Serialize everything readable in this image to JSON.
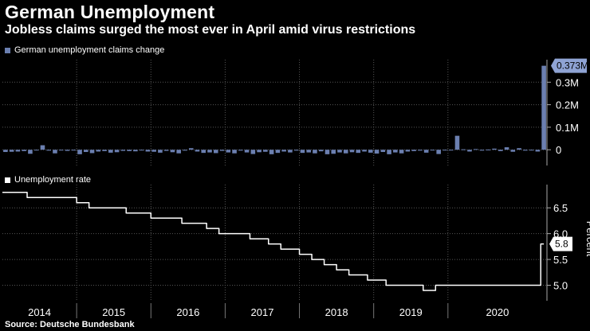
{
  "title": "German Unemployment",
  "subtitle": "Jobless claims surged the most ever in April amid virus restrictions",
  "source": "Source: Deutsche Bundesbank",
  "colors": {
    "bars": "#6b7fb0",
    "line": "#ffffff",
    "badge_claims": "#8fa3d4",
    "badge_rate": "#ffffff"
  },
  "chart_data": [
    {
      "type": "bar",
      "legend": "German unemployment claims change",
      "unit": "M",
      "ylim": [
        -0.07,
        0.4
      ],
      "yticks": [
        0,
        0.1,
        0.2,
        0.3
      ],
      "ytick_labels": [
        "0",
        "0.1M",
        "0.2M",
        "0.3M"
      ],
      "last_value_label": "0.373M",
      "start": "2014-01",
      "values": [
        -0.01,
        -0.009,
        -0.008,
        -0.006,
        -0.018,
        -0.002,
        0.02,
        -0.004,
        -0.016,
        -0.002,
        -0.005,
        -0.003,
        -0.02,
        -0.01,
        -0.015,
        -0.008,
        -0.006,
        -0.013,
        -0.011,
        -0.005,
        -0.006,
        -0.007,
        -0.002,
        -0.008,
        -0.009,
        -0.013,
        -0.005,
        -0.011,
        -0.016,
        -0.004,
        0.007,
        -0.008,
        -0.014,
        -0.012,
        -0.015,
        -0.005,
        -0.012,
        -0.016,
        -0.004,
        -0.012,
        -0.019,
        -0.011,
        -0.009,
        -0.02,
        -0.014,
        -0.008,
        -0.012,
        -0.004,
        -0.014,
        -0.012,
        -0.016,
        -0.007,
        -0.02,
        -0.018,
        -0.012,
        -0.016,
        -0.011,
        -0.014,
        -0.008,
        -0.013,
        -0.017,
        -0.01,
        -0.02,
        -0.012,
        -0.016,
        -0.008,
        -0.006,
        -0.004,
        -0.013,
        -0.001,
        -0.019,
        -0.003,
        -0.001,
        0.062,
        0.002,
        -0.008,
        0.003,
        -0.004,
        0.001,
        0.005,
        -0.006,
        0.011,
        -0.009,
        0.007,
        -0.004,
        -0.002,
        -0.008,
        0.373
      ]
    },
    {
      "type": "line",
      "legend": "Unemployment rate",
      "ylabel": "Percent",
      "ylim": [
        4.7,
        6.95
      ],
      "yticks": [
        5.0,
        5.5,
        6.0,
        6.5
      ],
      "ytick_labels": [
        "5.0",
        "5.5",
        "6.0",
        "6.5"
      ],
      "last_value_label": "5.8",
      "start": "2014-01",
      "values": [
        6.8,
        6.8,
        6.8,
        6.8,
        6.7,
        6.7,
        6.7,
        6.7,
        6.7,
        6.7,
        6.7,
        6.7,
        6.6,
        6.6,
        6.5,
        6.5,
        6.5,
        6.5,
        6.5,
        6.5,
        6.4,
        6.4,
        6.4,
        6.4,
        6.3,
        6.3,
        6.3,
        6.3,
        6.3,
        6.2,
        6.2,
        6.2,
        6.2,
        6.1,
        6.1,
        6.0,
        6.0,
        6.0,
        6.0,
        6.0,
        5.9,
        5.9,
        5.9,
        5.8,
        5.8,
        5.7,
        5.7,
        5.7,
        5.6,
        5.6,
        5.5,
        5.5,
        5.4,
        5.4,
        5.3,
        5.3,
        5.2,
        5.2,
        5.2,
        5.1,
        5.1,
        5.1,
        5.0,
        5.0,
        5.0,
        5.0,
        5.0,
        5.0,
        4.9,
        4.9,
        5.0,
        5.0,
        5.0,
        5.0,
        5.0,
        5.0,
        5.0,
        5.0,
        5.0,
        5.0,
        5.0,
        5.0,
        5.0,
        5.0,
        5.0,
        5.0,
        5.0,
        5.8
      ]
    }
  ],
  "x_axis": {
    "years": [
      "2014",
      "2015",
      "2016",
      "2017",
      "2018",
      "2019",
      "2020"
    ]
  }
}
